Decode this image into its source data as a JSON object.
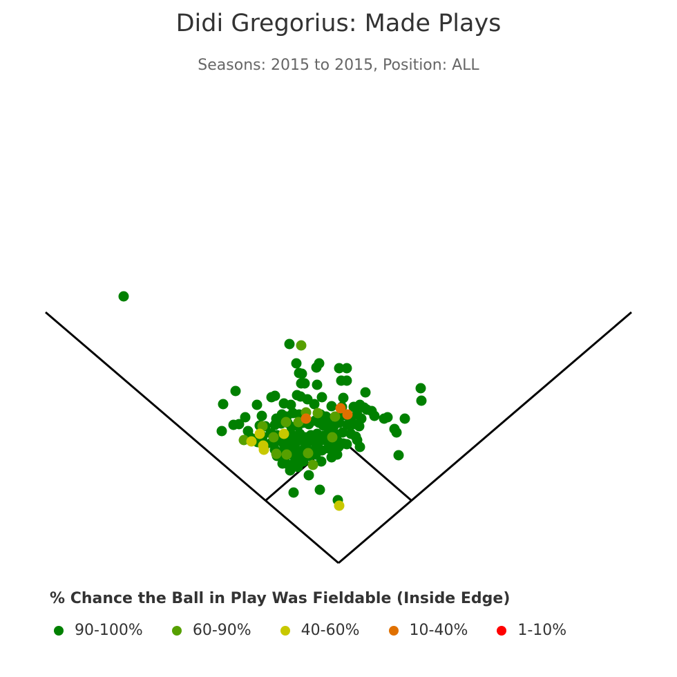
{
  "title": "Didi Gregorius: Made Plays",
  "subtitle": "Seasons: 2015 to 2015, Position: ALL",
  "legend_title": "% Chance the Ball in Play Was Fieldable (Inside Edge)",
  "legend": [
    {
      "label": "90-100%",
      "color": "#008000"
    },
    {
      "label": "60-90%",
      "color": "#56A000"
    },
    {
      "label": "40-60%",
      "color": "#C8C800"
    },
    {
      "label": "10-40%",
      "color": "#E07000"
    },
    {
      "label": "1-10%",
      "color": "#FF0000"
    }
  ],
  "chart_data": {
    "type": "scatter",
    "title": "Didi Gregorius: Made Plays",
    "subtitle": "Seasons: 2015 to 2015, Position: ALL",
    "field": "baseball diamond with foul lines",
    "series": [
      {
        "name": "90-100%",
        "color": "#008000",
        "points": [
          [
            179,
            429
          ],
          [
            419,
            498
          ],
          [
            429,
            526
          ],
          [
            462,
            526
          ],
          [
            458,
            532
          ],
          [
            491,
            533
          ],
          [
            502,
            533
          ],
          [
            433,
            540
          ],
          [
            437,
            541
          ],
          [
            494,
            551
          ],
          [
            502,
            551
          ],
          [
            436,
            555
          ],
          [
            441,
            555
          ],
          [
            459,
            557
          ],
          [
            341,
            566
          ],
          [
            430,
            572
          ],
          [
            435,
            574
          ],
          [
            393,
            575
          ],
          [
            398,
            573
          ],
          [
            445,
            578
          ],
          [
            466,
            575
          ],
          [
            497,
            576
          ],
          [
            529,
            568
          ],
          [
            609,
            562
          ],
          [
            610,
            580
          ],
          [
            323,
            585
          ],
          [
            372,
            586
          ],
          [
            411,
            584
          ],
          [
            421,
            586
          ],
          [
            455,
            585
          ],
          [
            480,
            588
          ],
          [
            495,
            589
          ],
          [
            512,
            589
          ],
          [
            521,
            586
          ],
          [
            527,
            590
          ],
          [
            531,
            593
          ],
          [
            538,
            595
          ],
          [
            542,
            602
          ],
          [
            379,
            602
          ],
          [
            355,
            604
          ],
          [
            400,
            606
          ],
          [
            408,
            600
          ],
          [
            415,
            603
          ],
          [
            424,
            598
          ],
          [
            433,
            600
          ],
          [
            464,
            600
          ],
          [
            472,
            603
          ],
          [
            489,
            604
          ],
          [
            498,
            601
          ],
          [
            507,
            604
          ],
          [
            517,
            600
          ],
          [
            523,
            606
          ],
          [
            556,
            606
          ],
          [
            561,
            604
          ],
          [
            586,
            606
          ],
          [
            338,
            615
          ],
          [
            346,
            614
          ],
          [
            359,
            624
          ],
          [
            376,
            616
          ],
          [
            384,
            617
          ],
          [
            398,
            615
          ],
          [
            407,
            613
          ],
          [
            416,
            612
          ],
          [
            422,
            618
          ],
          [
            431,
            617
          ],
          [
            439,
            612
          ],
          [
            447,
            614
          ],
          [
            456,
            609
          ],
          [
            462,
            612
          ],
          [
            468,
            616
          ],
          [
            474,
            611
          ],
          [
            483,
            617
          ],
          [
            491,
            612
          ],
          [
            503,
            615
          ],
          [
            512,
            614
          ],
          [
            520,
            617
          ],
          [
            571,
            621
          ],
          [
            574,
            626
          ],
          [
            321,
            624
          ],
          [
            361,
            632
          ],
          [
            371,
            635
          ],
          [
            380,
            632
          ],
          [
            392,
            627
          ],
          [
            401,
            630
          ],
          [
            409,
            634
          ],
          [
            417,
            629
          ],
          [
            425,
            631
          ],
          [
            434,
            628
          ],
          [
            442,
            633
          ],
          [
            450,
            630
          ],
          [
            459,
            628
          ],
          [
            467,
            631
          ],
          [
            476,
            625
          ],
          [
            488,
            629
          ],
          [
            496,
            626
          ],
          [
            508,
            628
          ],
          [
            515,
            632
          ],
          [
            517,
            637
          ],
          [
            373,
            640
          ],
          [
            385,
            643
          ],
          [
            393,
            641
          ],
          [
            403,
            638
          ],
          [
            411,
            643
          ],
          [
            419,
            639
          ],
          [
            428,
            641
          ],
          [
            437,
            637
          ],
          [
            444,
            642
          ],
          [
            452,
            638
          ],
          [
            461,
            640
          ],
          [
            470,
            637
          ],
          [
            479,
            640
          ],
          [
            489,
            639
          ],
          [
            497,
            642
          ],
          [
            502,
            643
          ],
          [
            521,
            647
          ],
          [
            398,
            651
          ],
          [
            406,
            655
          ],
          [
            414,
            652
          ],
          [
            422,
            648
          ],
          [
            431,
            653
          ],
          [
            440,
            650
          ],
          [
            449,
            653
          ],
          [
            458,
            648
          ],
          [
            466,
            652
          ],
          [
            475,
            649
          ],
          [
            483,
            653
          ],
          [
            490,
            647
          ],
          [
            401,
            660
          ],
          [
            412,
            663
          ],
          [
            426,
            661
          ],
          [
            436,
            664
          ],
          [
            448,
            660
          ],
          [
            457,
            658
          ],
          [
            465,
            668
          ],
          [
            480,
            662
          ],
          [
            488,
            658
          ],
          [
            409,
            671
          ],
          [
            418,
            673
          ],
          [
            430,
            670
          ],
          [
            439,
            668
          ],
          [
            577,
            659
          ],
          [
            420,
            681
          ],
          [
            431,
            676
          ],
          [
            447,
            688
          ],
          [
            425,
            713
          ],
          [
            463,
            709
          ],
          [
            489,
            724
          ]
        ]
      },
      {
        "name": "60-90%",
        "color": "#56A000",
        "points": [
          [
            436,
            500
          ],
          [
            443,
            597
          ],
          [
            460,
            598
          ],
          [
            414,
            611
          ],
          [
            432,
            611
          ],
          [
            485,
            603
          ],
          [
            380,
            617
          ],
          [
            396,
            633
          ],
          [
            353,
            637
          ],
          [
            481,
            633
          ],
          [
            415,
            658
          ],
          [
            446,
            656
          ],
          [
            400,
            657
          ],
          [
            453,
            673
          ]
        ]
      },
      {
        "name": "40-60%",
        "color": "#C8C800",
        "points": [
          [
            376,
            628
          ],
          [
            411,
            628
          ],
          [
            364,
            639
          ],
          [
            381,
            645
          ],
          [
            382,
            651
          ],
          [
            491,
            732
          ]
        ]
      },
      {
        "name": "10-40%",
        "color": "#E07000",
        "points": [
          [
            493,
            591
          ],
          [
            503,
            600
          ],
          [
            443,
            606
          ]
        ]
      },
      {
        "name": "1-10%",
        "color": "#FF0000",
        "points": []
      }
    ]
  }
}
